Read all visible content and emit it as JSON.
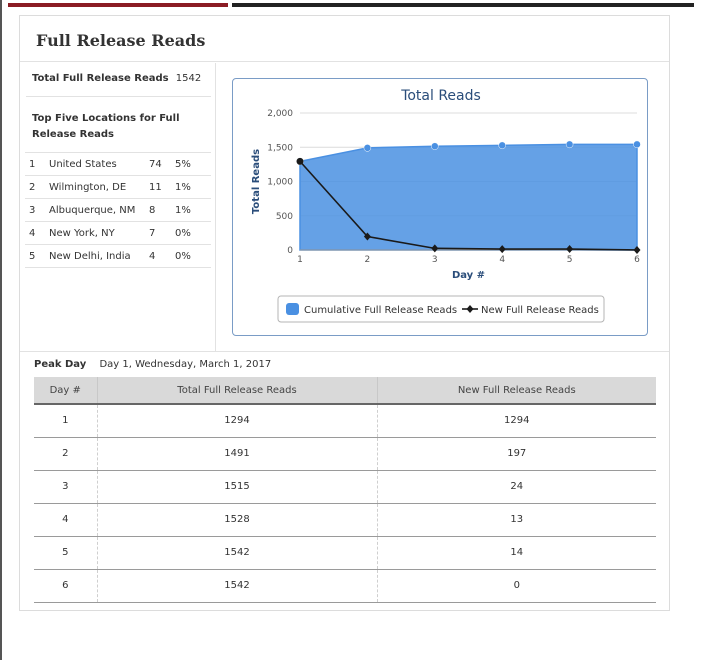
{
  "title": "Full Release Reads",
  "total": {
    "label": "Total Full Release Reads",
    "value": "1542"
  },
  "top_locations": {
    "heading": "Top Five Locations for Full Release Reads",
    "rows": [
      {
        "rank": "1",
        "name": "United States",
        "count": "74",
        "pct": "5%"
      },
      {
        "rank": "2",
        "name": "Wilmington, DE",
        "count": "11",
        "pct": "1%"
      },
      {
        "rank": "3",
        "name": "Albuquerque, NM",
        "count": "8",
        "pct": "1%"
      },
      {
        "rank": "4",
        "name": "New York, NY",
        "count": "7",
        "pct": "0%"
      },
      {
        "rank": "5",
        "name": "New Delhi, India",
        "count": "4",
        "pct": "0%"
      }
    ]
  },
  "chart_data": {
    "type": "area",
    "title": "Total Reads",
    "xlabel": "Day #",
    "ylabel": "Total Reads",
    "x": [
      1,
      2,
      3,
      4,
      5,
      6
    ],
    "xticks": [
      "1",
      "2",
      "3",
      "4",
      "5",
      "6"
    ],
    "yticks": [
      "0",
      "500",
      "1,000",
      "1,500",
      "2,000"
    ],
    "ylim": [
      0,
      2000
    ],
    "grid": true,
    "legend_position": "bottom-center",
    "series": [
      {
        "name": "Cumulative Full Release Reads",
        "type": "area",
        "color": "#4a90e2",
        "values": [
          1294,
          1491,
          1515,
          1528,
          1542,
          1542
        ]
      },
      {
        "name": "New Full Release Reads",
        "type": "line",
        "color": "#1a1a1a",
        "values": [
          1294,
          197,
          24,
          13,
          14,
          0
        ]
      }
    ]
  },
  "peak": {
    "label": "Peak Day",
    "value": "Day 1, Wednesday, March 1, 2017"
  },
  "daily_table": {
    "headers": [
      "Day #",
      "Total Full Release Reads",
      "New Full Release Reads"
    ],
    "rows": [
      [
        "1",
        "1294",
        "1294"
      ],
      [
        "2",
        "1491",
        "197"
      ],
      [
        "3",
        "1515",
        "24"
      ],
      [
        "4",
        "1528",
        "13"
      ],
      [
        "5",
        "1542",
        "14"
      ],
      [
        "6",
        "1542",
        "0"
      ]
    ]
  }
}
